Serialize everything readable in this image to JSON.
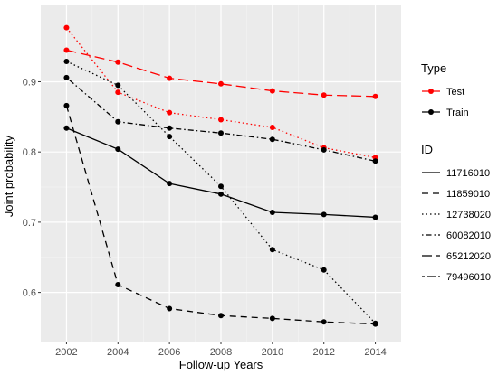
{
  "chart_data": {
    "type": "line",
    "xlabel": "Follow-up Years",
    "ylabel": "Joint probability",
    "xlim": [
      2001,
      2015
    ],
    "ylim": [
      0.53,
      1.01
    ],
    "x_ticks": [
      2002,
      2004,
      2006,
      2008,
      2010,
      2012,
      2014
    ],
    "y_ticks": [
      0.6,
      0.7,
      0.8,
      0.9
    ],
    "y_tick_labels": [
      "0.6",
      "0.7",
      "0.8",
      "0.9"
    ],
    "x": [
      2002,
      2004,
      2006,
      2008,
      2010,
      2012,
      2014
    ],
    "grid": true,
    "legend_placement": "right",
    "colors": {
      "panel": "#ebebeb",
      "grid_major": "#ffffff",
      "grid_minor": "#f5f5f5",
      "Test": "#ff0000",
      "Train": "#000000"
    },
    "series": [
      {
        "id": "11716010",
        "type": "Test",
        "values": [
          null,
          null,
          null,
          null,
          null,
          null,
          null
        ]
      },
      {
        "id": "11716010",
        "type": "Train",
        "values": [
          0.834,
          0.804,
          0.755,
          0.74,
          0.714,
          0.711,
          0.707
        ]
      },
      {
        "id": "11859010",
        "type": "Train",
        "values": [
          0.866,
          0.611,
          0.577,
          0.567,
          0.563,
          0.558,
          0.555
        ]
      },
      {
        "id": "12738020",
        "type": "Train",
        "values": [
          0.929,
          0.895,
          0.822,
          0.751,
          0.661,
          0.632,
          0.556
        ]
      },
      {
        "id": "12738020",
        "type": "Test",
        "values": [
          0.977,
          0.885,
          0.856,
          0.846,
          0.835,
          0.806,
          0.792
        ]
      },
      {
        "id": "60082010",
        "type": "Train",
        "values": [
          0.906,
          0.843,
          0.834,
          0.827,
          0.818,
          0.803,
          0.787
        ]
      },
      {
        "id": "65212020",
        "type": "Test",
        "values": [
          0.945,
          0.928,
          0.905,
          0.897,
          0.887,
          0.881,
          0.879
        ]
      }
    ],
    "legend": {
      "type_title": "Type",
      "type_entries": [
        {
          "label": "Test",
          "color": "#ff0000"
        },
        {
          "label": "Train",
          "color": "#000000"
        }
      ],
      "id_title": "ID",
      "id_entries": [
        {
          "label": "11716010",
          "dash": "solid"
        },
        {
          "label": "11859010",
          "dash": "dashed"
        },
        {
          "label": "12738020",
          "dash": "dotted"
        },
        {
          "label": "60082010",
          "dash": "dotdash"
        },
        {
          "label": "65212020",
          "dash": "longdash"
        },
        {
          "label": "79496010",
          "dash": "twodash"
        }
      ]
    }
  }
}
